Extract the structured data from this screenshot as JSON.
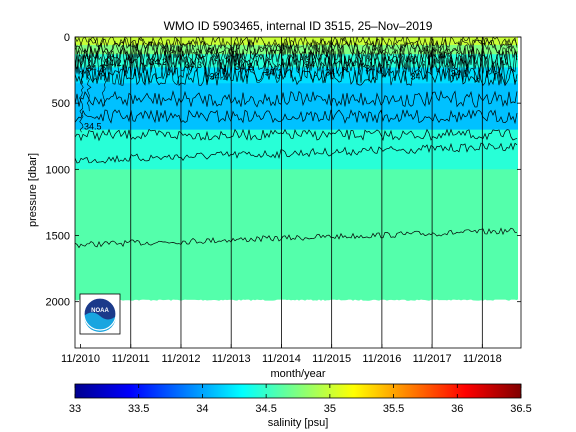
{
  "chart_data": {
    "type": "heatmap",
    "title": "WMO ID 5903465, internal ID 3515, 25–Nov–2019",
    "xlabel": "month/year",
    "ylabel": "pressure [dbar]",
    "x_ticks": [
      "11/2010",
      "11/2011",
      "11/2012",
      "11/2013",
      "11/2014",
      "11/2015",
      "11/2016",
      "11/2017",
      "11/2018"
    ],
    "x_range_years": [
      2010.72,
      2019.6
    ],
    "y_ticks": [
      0,
      500,
      1000,
      1500,
      2000
    ],
    "ylim": [
      0,
      2350
    ],
    "y_reversed": true,
    "max_profile_pressure": 1980,
    "colorbar": {
      "label": "salinity [psu]",
      "ticks": [
        "33",
        "33.5",
        "34",
        "34.5",
        "35",
        "35.5",
        "36",
        "36.5"
      ],
      "range": [
        33,
        36.5
      ],
      "colormap": "jet"
    },
    "contour_levels": [
      34.1,
      34.2,
      34.3,
      34.4,
      34.5,
      34.6
    ],
    "contour_labels": [
      "34.2",
      "34.2",
      "34.2",
      "34.3",
      "34.1",
      "34.2",
      "34.1",
      "34",
      "34",
      "34.1",
      "34",
      "34.1",
      "34.5"
    ],
    "approx_contour_depths": [
      {
        "level": 34.6,
        "pressure": 1570
      },
      {
        "level": 34.5,
        "pressure": 930
      },
      {
        "level": 34.4,
        "pressure": 740
      },
      {
        "level": 34.3,
        "pressure": 600
      },
      {
        "level": 34.2,
        "pressure": 470
      },
      {
        "level": 34.1,
        "pressure": 300
      }
    ],
    "fields": [
      {
        "p_max": 60,
        "salinity": 35.0
      },
      {
        "p_max": 130,
        "salinity": 34.75
      },
      {
        "p_max": 230,
        "salinity": 34.45
      },
      {
        "p_max": 350,
        "salinity": 34.2
      },
      {
        "p_max": 700,
        "salinity": 34.1
      },
      {
        "p_max": 1000,
        "salinity": 34.45
      },
      {
        "p_max": 1980,
        "salinity": 34.6
      }
    ],
    "logo": "noaa-logo",
    "colors": {
      "vline": "#000000",
      "contour": "#000000"
    }
  }
}
